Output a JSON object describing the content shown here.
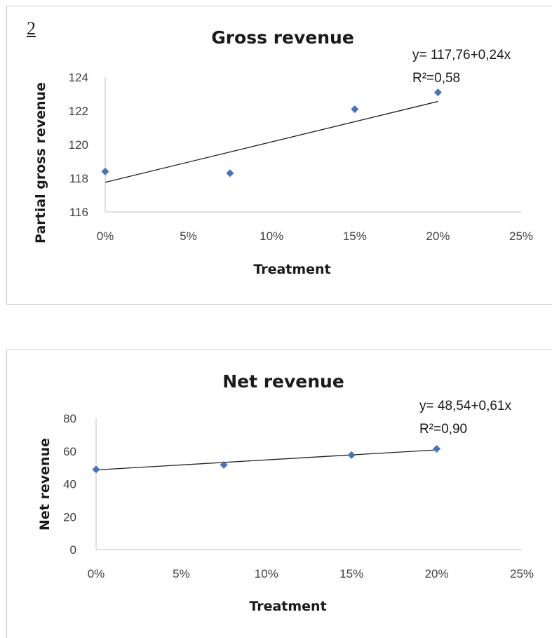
{
  "panel_number": "2",
  "chart_data": [
    {
      "type": "scatter",
      "title": "Gross revenue",
      "xlabel": "Treatment",
      "ylabel": "Partial gross revenue",
      "xlim": [
        0,
        0.25
      ],
      "ylim": [
        116,
        124
      ],
      "x_ticks": [
        "0%",
        "5%",
        "10%",
        "15%",
        "20%",
        "25%"
      ],
      "x_tick_values": [
        0,
        0.05,
        0.1,
        0.15,
        0.2,
        0.25
      ],
      "y_ticks": [
        "116",
        "118",
        "120",
        "122",
        "124"
      ],
      "y_tick_values": [
        116,
        118,
        120,
        122,
        124
      ],
      "series": [
        {
          "x": [
            0,
            0.075,
            0.15,
            0.2
          ],
          "y": [
            118.4,
            118.3,
            122.1,
            123.1
          ],
          "color": "#4a72b8"
        }
      ],
      "trendline": {
        "intercept": 117.76,
        "slope_per_percent": 0.24,
        "color": "#222222"
      },
      "equation": "y= 117,76+0,24x",
      "r_squared": "R²=0,58",
      "grid": false,
      "legend": "none"
    },
    {
      "type": "scatter",
      "title": "Net revenue",
      "xlabel": "Treatment",
      "ylabel": "Net revenue",
      "xlim": [
        0,
        0.25
      ],
      "ylim": [
        0,
        80
      ],
      "x_ticks": [
        "0%",
        "5%",
        "10%",
        "15%",
        "20%",
        "25%"
      ],
      "x_tick_values": [
        0,
        0.05,
        0.1,
        0.15,
        0.2,
        0.25
      ],
      "y_ticks": [
        "0",
        "20",
        "40",
        "60",
        "80"
      ],
      "y_tick_values": [
        0,
        20,
        40,
        60,
        80
      ],
      "series": [
        {
          "x": [
            0,
            0.075,
            0.15,
            0.2
          ],
          "y": [
            48.8,
            51.6,
            57.6,
            61.4
          ],
          "color": "#4a72b8"
        }
      ],
      "trendline": {
        "intercept": 48.54,
        "slope_per_percent": 0.61,
        "color": "#222222"
      },
      "equation": "y= 48,54+0,61x",
      "r_squared": "R²=0,90",
      "grid": false,
      "legend": "none"
    }
  ]
}
